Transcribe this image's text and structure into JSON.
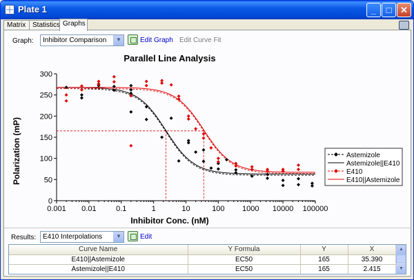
{
  "window": {
    "title": "Plate 1",
    "icon": "plate-grid-icon"
  },
  "tabs": [
    {
      "label": "Matrix",
      "active": false
    },
    {
      "label": "Statistics",
      "active": false
    },
    {
      "label": "Graphs",
      "active": true
    }
  ],
  "graph_bar": {
    "label": "Graph:",
    "selected": "Inhibitor Comparison",
    "edit_graph": "Edit Graph",
    "edit_curve_fit": "Edit Curve Fit"
  },
  "results_bar": {
    "label": "Results:",
    "selected": "E410 Interpolations",
    "edit": "Edit"
  },
  "results_table": {
    "columns": [
      "Curve Name",
      "Y Formula",
      "Y",
      "X"
    ],
    "rows": [
      [
        "E410||Astemizole",
        "EC50",
        "165",
        "35.390"
      ],
      [
        "Astemizole||E410",
        "EC50",
        "165",
        "2.415"
      ]
    ]
  },
  "chart_data": {
    "type": "scatter",
    "title": "Parallel Line Analysis",
    "xlabel": "Inhibitor Conc. (nM)",
    "ylabel": "Polarization (mP)",
    "x_scale": "log",
    "xlim": [
      0.001,
      100000
    ],
    "ylim": [
      0,
      300
    ],
    "x_ticks": [
      "0.001",
      "0.01",
      "0.1",
      "1",
      "10",
      "100",
      "1000",
      "10000",
      "100000"
    ],
    "y_ticks": [
      "0",
      "50",
      "100",
      "150",
      "200",
      "250",
      "300"
    ],
    "grid": false,
    "legend_position": "right",
    "interpolation_y": 165,
    "series": [
      {
        "name": "Astemizole",
        "kind": "points",
        "color": "#000000",
        "marker": "diamond",
        "style": "dashed",
        "points": [
          [
            0.002,
            268
          ],
          [
            0.006,
            243
          ],
          [
            0.006,
            250
          ],
          [
            0.02,
            276
          ],
          [
            0.02,
            272
          ],
          [
            0.06,
            261
          ],
          [
            0.06,
            270
          ],
          [
            0.2,
            210
          ],
          [
            0.2,
            254
          ],
          [
            0.2,
            272
          ],
          [
            0.2,
            262
          ],
          [
            0.6,
            192
          ],
          [
            0.6,
            222
          ],
          [
            1.8,
            150
          ],
          [
            3.5,
            195
          ],
          [
            6,
            94
          ],
          [
            12,
            137
          ],
          [
            12,
            142
          ],
          [
            20,
            115
          ],
          [
            35,
            120
          ],
          [
            35,
            93
          ],
          [
            60,
            77
          ],
          [
            100,
            88
          ],
          [
            100,
            75
          ],
          [
            180,
            97
          ],
          [
            350,
            73
          ],
          [
            350,
            66
          ],
          [
            1100,
            58
          ],
          [
            3300,
            62
          ],
          [
            3300,
            53
          ],
          [
            10000,
            48
          ],
          [
            10000,
            36
          ],
          [
            30000,
            52
          ],
          [
            30000,
            38
          ],
          [
            80000,
            41
          ],
          [
            80000,
            35
          ]
        ]
      },
      {
        "name": "Astemizole||E410",
        "kind": "curve",
        "color": "#000000",
        "style": "solid",
        "top": 268,
        "bottom": 63,
        "ec50": 2.415,
        "hill": 1.0
      },
      {
        "name": "E410",
        "kind": "points",
        "color": "#e00000",
        "marker": "diamond",
        "style": "dashed",
        "points": [
          [
            0.002,
            250
          ],
          [
            0.002,
            236
          ],
          [
            0.006,
            271
          ],
          [
            0.006,
            262
          ],
          [
            0.02,
            282
          ],
          [
            0.02,
            275
          ],
          [
            0.06,
            293
          ],
          [
            0.06,
            281
          ],
          [
            0.2,
            248
          ],
          [
            0.2,
            130
          ],
          [
            0.6,
            282
          ],
          [
            0.6,
            272
          ],
          [
            1.8,
            284
          ],
          [
            1.8,
            278
          ],
          [
            3.5,
            274
          ],
          [
            6,
            247
          ],
          [
            6,
            240
          ],
          [
            12,
            200
          ],
          [
            12,
            193
          ],
          [
            20,
            170
          ],
          [
            35,
            158
          ],
          [
            35,
            148
          ],
          [
            60,
            125
          ],
          [
            100,
            100
          ],
          [
            100,
            92
          ],
          [
            350,
            88
          ],
          [
            350,
            82
          ],
          [
            1100,
            80
          ],
          [
            1100,
            74
          ],
          [
            3300,
            74
          ],
          [
            3300,
            70
          ],
          [
            10000,
            74
          ],
          [
            10000,
            70
          ],
          [
            30000,
            84
          ],
          [
            30000,
            74
          ]
        ]
      },
      {
        "name": "E410||Astemizole",
        "kind": "curve",
        "color": "#e00000",
        "style": "solid",
        "top": 268,
        "bottom": 67,
        "ec50": 35.39,
        "hill": 1.0
      }
    ]
  }
}
